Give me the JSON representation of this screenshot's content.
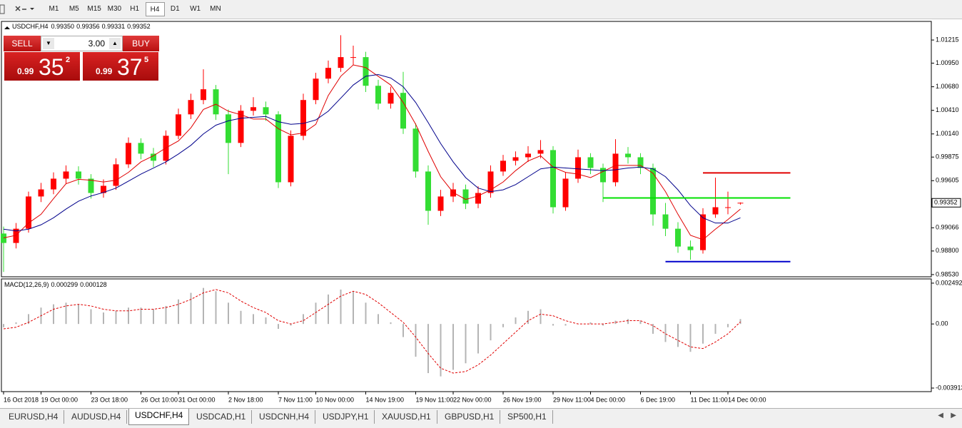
{
  "toolbar": {
    "timeframes": [
      "M1",
      "M5",
      "M15",
      "M30",
      "H1",
      "H4",
      "D1",
      "W1",
      "MN"
    ],
    "active": 5
  },
  "trade_panel": {
    "sell": "SELL",
    "buy": "BUY",
    "volume": "3.00",
    "bid": {
      "big": "0.99",
      "pips": "35",
      "point": "2"
    },
    "ask": {
      "big": "0.99",
      "pips": "37",
      "point": "5"
    }
  },
  "chart_data": {
    "type": "candlestick",
    "header": {
      "symbol": "USDCHF,H4",
      "open": {
        "value": 0.9935,
        "label": "0.99350"
      },
      "high": 0.99356,
      "low": 0.99331,
      "close": 0.99352
    },
    "up_color": "#ff0000",
    "down_color": "#33dd33",
    "categories": [
      "16 Oct 2018",
      null,
      null,
      "19 Oct 00:00",
      null,
      null,
      null,
      "23 Oct 18:00",
      null,
      null,
      null,
      "26 Oct 10:00",
      null,
      null,
      "31 Oct 00:00",
      null,
      null,
      null,
      "2 Nov 18:00",
      null,
      null,
      null,
      "7 Nov 11:00",
      null,
      null,
      "10 Nov 00:00",
      null,
      null,
      null,
      "14 Nov 19:00",
      null,
      null,
      null,
      "19 Nov 11:00",
      null,
      null,
      "22 Nov 00:00",
      null,
      null,
      null,
      "26 Nov 19:00",
      null,
      null,
      null,
      "29 Nov 11:00",
      null,
      null,
      "4 Dec 00:00",
      null,
      null,
      null,
      "6 Dec 19:00",
      null,
      null,
      null,
      "11 Dec 11:00",
      null,
      null,
      "14 Dec 00:00",
      null
    ],
    "open": [
      0.99,
      0.98892,
      0.99055,
      0.99424,
      0.99505,
      0.99628,
      0.9971,
      0.99628,
      0.99464,
      0.99546,
      0.99792,
      1.00037,
      0.99914,
      0.99833,
      1.00119,
      1.00364,
      1.00528,
      1.00651,
      1.00364,
      1.00037,
      1.00405,
      1.00446,
      1.00364,
      0.99587,
      1.00119,
      1.00528,
      1.00773,
      1.00896,
      1.01019,
      1.01019,
      1.00691,
      1.00487,
      1.0061,
      1.00201,
      0.9971,
      0.9926,
      0.99424,
      0.99505,
      0.99342,
      0.99464,
      0.9971,
      0.99833,
      0.99873,
      0.99914,
      0.99955,
      0.99301,
      0.99628,
      0.99873,
      0.99751,
      0.99587,
      0.99914,
      0.99873,
      0.99751,
      0.99219,
      0.99055,
      0.98851,
      0.9881,
      0.99219,
      0.99301,
      0.9935
    ],
    "high": [
      0.9908,
      0.9912,
      0.9948,
      0.9958,
      0.997,
      0.9978,
      0.9977,
      0.9968,
      0.9962,
      0.9986,
      1.001,
      1.0009,
      0.9998,
      1.0018,
      1.0043,
      1.006,
      1.0088,
      1.007,
      1.0042,
      1.0047,
      1.0056,
      1.0051,
      1.004,
      1.0018,
      1.006,
      1.0084,
      1.0098,
      1.0127,
      1.0115,
      1.0108,
      1.0076,
      1.0068,
      1.0085,
      1.0026,
      0.9978,
      0.995,
      0.9958,
      0.9956,
      0.9954,
      0.9978,
      0.999,
      0.9994,
      1.0,
      1.0007,
      1.0,
      0.997,
      0.9996,
      0.9992,
      0.998,
      1.0008,
      0.9999,
      0.9992,
      0.998,
      0.9935,
      0.9913,
      0.9892,
      0.9929,
      0.9964,
      0.9948,
      0.99356
    ],
    "low": [
      0.9856,
      0.9883,
      0.9901,
      0.9936,
      0.9945,
      0.9957,
      0.9956,
      0.994,
      0.9941,
      0.995,
      0.9975,
      0.9985,
      0.9976,
      0.9979,
      1.0008,
      1.0031,
      1.0048,
      1.003,
      0.9968,
      0.9999,
      1.0035,
      1.0029,
      0.9952,
      0.9954,
      1.0007,
      1.0048,
      1.0072,
      1.0085,
      1.0093,
      1.0062,
      1.0042,
      1.0043,
      1.0014,
      0.9964,
      0.991,
      0.992,
      0.9936,
      0.9928,
      0.9929,
      0.9941,
      0.9966,
      0.9978,
      0.9982,
      0.9986,
      0.9923,
      0.9926,
      0.9958,
      0.9968,
      0.9936,
      0.9954,
      0.998,
      0.9968,
      0.9909,
      0.9897,
      0.9878,
      0.987,
      0.9877,
      0.9918,
      0.9922,
      0.99331
    ],
    "close": [
      0.98892,
      0.99055,
      0.99424,
      0.99505,
      0.99628,
      0.9971,
      0.99628,
      0.99464,
      0.99546,
      0.99792,
      1.00037,
      0.99914,
      0.99833,
      1.00119,
      1.00364,
      1.00528,
      1.00651,
      1.00364,
      1.00037,
      1.00405,
      1.00446,
      1.00364,
      0.99587,
      1.00119,
      1.00528,
      1.00773,
      1.00896,
      1.01019,
      1.01019,
      1.00691,
      1.00487,
      1.0061,
      1.00201,
      0.9971,
      0.9926,
      0.99424,
      0.99505,
      0.99342,
      0.99464,
      0.9971,
      0.99833,
      0.99873,
      0.99914,
      0.99955,
      0.99301,
      0.99628,
      0.99873,
      0.99751,
      0.99587,
      0.99914,
      0.99873,
      0.99751,
      0.99219,
      0.99055,
      0.98851,
      0.9881,
      0.99219,
      0.99301,
      0.99301,
      0.99352
    ],
    "moving_averages": [
      {
        "color": "#e00000",
        "values": [
          0.9895,
          0.9898,
          0.9912,
          0.9922,
          0.994,
          0.9957,
          0.9962,
          0.9961,
          0.9959,
          0.9961,
          0.997,
          0.9982,
          0.9989,
          0.9998,
          1.0006,
          1.0021,
          1.0042,
          1.0048,
          1.004,
          1.0036,
          1.0031,
          1.0031,
          1.002,
          1.0013,
          1.0015,
          1.0025,
          1.0058,
          1.008,
          1.0093,
          1.009,
          1.008,
          1.007,
          1.005,
          1.0025,
          0.9994,
          0.9965,
          0.9947,
          0.9939,
          0.9943,
          0.995,
          0.9959,
          0.9972,
          0.9983,
          0.9989,
          0.9976,
          0.997,
          0.9968,
          0.9964,
          0.9971,
          0.9978,
          0.9978,
          0.9978,
          0.9969,
          0.9948,
          0.9922,
          0.9898,
          0.9893,
          0.9905,
          0.9916,
          0.9928
        ]
      },
      {
        "color": "#00008b",
        "values": [
          0.9905,
          0.9903,
          0.9905,
          0.991,
          0.9918,
          0.9928,
          0.9937,
          0.9943,
          0.9947,
          0.9952,
          0.996,
          0.9968,
          0.9975,
          0.9982,
          0.9991,
          1.0001,
          1.0014,
          1.0024,
          1.0029,
          1.0032,
          1.0033,
          1.0034,
          1.0028,
          1.0025,
          1.0026,
          1.003,
          1.004,
          1.0055,
          1.007,
          1.008,
          1.0082,
          1.0078,
          1.0068,
          1.005,
          1.0027,
          1.0003,
          0.9982,
          0.9964,
          0.9952,
          0.9948,
          0.995,
          0.9956,
          0.9965,
          0.9974,
          0.9976,
          0.9975,
          0.9974,
          0.9973,
          0.9972,
          0.9973,
          0.9975,
          0.9976,
          0.9974,
          0.9965,
          0.995,
          0.9932,
          0.9918,
          0.9912,
          0.9912,
          0.9918
        ]
      }
    ],
    "levels": [
      {
        "value": 0.99694,
        "color": "#e00000",
        "from": 56,
        "to": 63
      },
      {
        "value": 0.99407,
        "color": "#00e000",
        "from": 48,
        "to": 63
      },
      {
        "value": 0.98679,
        "color": "#0000cc",
        "from": 53,
        "to": 63
      }
    ],
    "ylim": [
      0.98505,
      1.01428
    ],
    "yticks": [
      1.01215,
      {
        "value": 1.0095,
        "label": "1.00950"
      },
      {
        "value": 1.0068,
        "label": "1.00680"
      },
      {
        "value": 1.0041,
        "label": "1.00410"
      },
      {
        "value": 1.0014,
        "label": "1.00140"
      },
      0.99875,
      0.99605,
      0.99066,
      {
        "value": 0.988,
        "label": "0.98800"
      },
      {
        "value": 0.9853,
        "label": "0.98530"
      }
    ],
    "macd": {
      "title": "MACD(12,26,9)",
      "hist_color": "#b4b4b4",
      "signal_color": "#e00000",
      "histogram": [
        -0.0002,
        0.0001,
        0.0006,
        0.001,
        0.0012,
        0.0013,
        0.0012,
        0.0009,
        0.0007,
        0.0008,
        0.001,
        0.001,
        0.0009,
        0.0011,
        0.0015,
        0.0019,
        0.0022,
        0.002,
        0.0013,
        0.0008,
        0.0006,
        0.0004,
        -0.0003,
        -0.0001,
        0.0006,
        0.0013,
        0.0018,
        0.0021,
        0.002,
        0.0013,
        0.0006,
        0.0001,
        -0.0008,
        -0.002,
        -0.003,
        -0.0032,
        -0.0028,
        -0.0024,
        -0.0018,
        -0.001,
        -0.0002,
        0.0004,
        0.0008,
        0.0009,
        -0.0001,
        -0.0001,
        0,
        0.0001,
        -0.0001,
        0.0002,
        0.0003,
        0.0002,
        -0.0006,
        -0.0011,
        -0.0014,
        -0.0017,
        -0.0012,
        -0.0006,
        -0.0002,
        0.000299
      ],
      "signal": [
        -0.0003,
        -0.0002,
        0.0001,
        0.0005,
        0.0009,
        0.0011,
        0.0012,
        0.0011,
        0.0009,
        0.0008,
        0.0008,
        0.0009,
        0.0009,
        0.001,
        0.0012,
        0.0015,
        0.0019,
        0.0021,
        0.0019,
        0.0014,
        0.001,
        0.0007,
        0.0002,
        0,
        0.0002,
        0.0007,
        0.0012,
        0.0017,
        0.002,
        0.0018,
        0.0013,
        0.0007,
        0.0001,
        -0.0008,
        -0.0018,
        -0.0027,
        -0.003,
        -0.0029,
        -0.0025,
        -0.0019,
        -0.0012,
        -0.0005,
        0.0002,
        0.0006,
        0.0005,
        0.0002,
        0,
        0,
        0,
        0.0001,
        0.0002,
        0.0002,
        -0.0001,
        -0.0006,
        -0.001,
        -0.0014,
        -0.0015,
        -0.0011,
        -0.0006,
        0.000128
      ],
      "ylim": [
        -0.00413,
        0.00275
      ],
      "yticks": [
        0.002492,
        {
          "value": 0,
          "label": "0.00"
        },
        -0.003913
      ]
    }
  },
  "tabs": {
    "items": [
      "EURUSD,H4",
      "AUDUSD,H4",
      "USDCHF,H4",
      "USDCAD,H1",
      "USDCNH,H4",
      "USDJPY,H1",
      "XAUUSD,H1",
      "GBPUSD,H1",
      "SP500,H1"
    ],
    "active": 2
  }
}
